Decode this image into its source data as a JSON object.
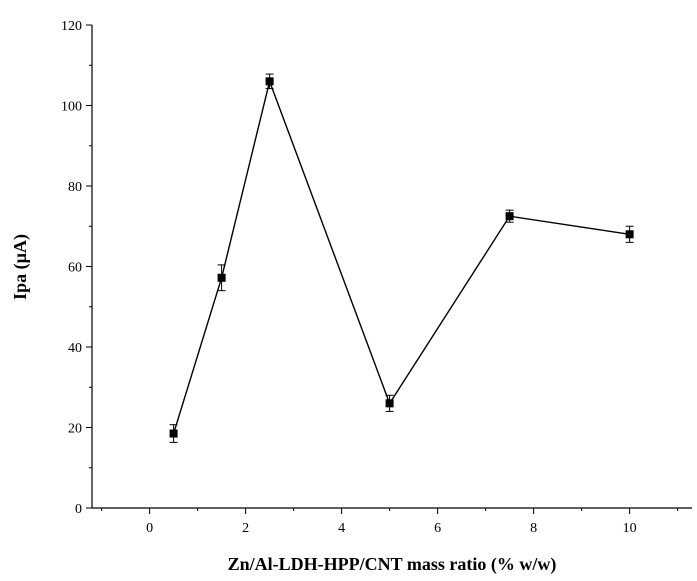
{
  "chart_data": {
    "type": "line",
    "xlabel": "Zn/Al-LDH-HPP/CNT mass ratio (% w/w)",
    "ylabel": "Ipa (µA)",
    "xlim": [
      -1.2,
      11.3
    ],
    "ylim": [
      0,
      120
    ],
    "x_ticks": [
      0,
      2,
      4,
      6,
      8,
      10
    ],
    "y_ticks": [
      0,
      20,
      40,
      60,
      80,
      100,
      120
    ],
    "x_tick_labels": [
      "0",
      "2",
      "4",
      "6",
      "8",
      "10"
    ],
    "y_tick_labels": [
      "0",
      "20",
      "40",
      "60",
      "80",
      "100",
      "120"
    ],
    "grid": false,
    "series": [
      {
        "marker": "square",
        "color": "#000000",
        "x": [
          0.5,
          1.5,
          2.5,
          5,
          7.5,
          10
        ],
        "y": [
          18.5,
          57.2,
          106.0,
          26.0,
          72.5,
          68.0
        ],
        "error": [
          2.2,
          3.2,
          1.8,
          2.0,
          1.5,
          2.0
        ]
      }
    ]
  }
}
